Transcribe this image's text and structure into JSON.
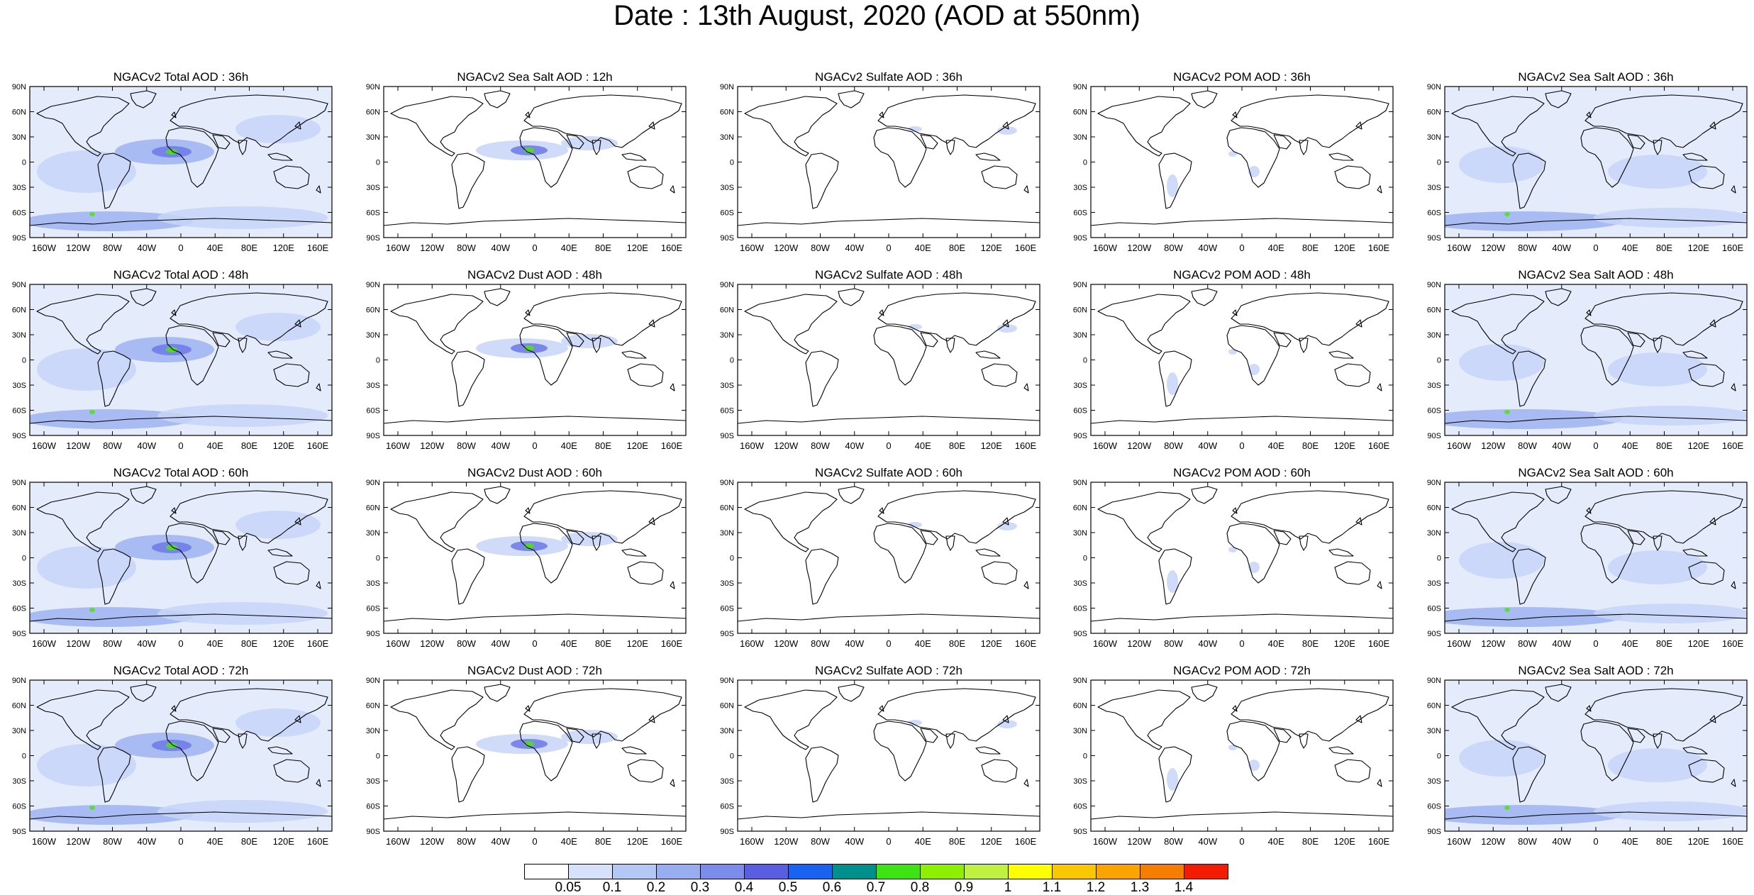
{
  "title": "Date : 13th August, 2020 (AOD at 550nm)",
  "lat_labels": [
    "90N",
    "60N",
    "30N",
    "0",
    "30S",
    "60S",
    "90S"
  ],
  "lon_labels": [
    "160W",
    "120W",
    "80W",
    "40W",
    "0",
    "40E",
    "80E",
    "120E",
    "160E"
  ],
  "panels": [
    {
      "title": "NGACv2 Total AOD : 36h"
    },
    {
      "title": "NGACv2 Sea Salt  AOD : 12h"
    },
    {
      "title": "NGACv2 Sulfate AOD : 36h"
    },
    {
      "title": "NGACv2 POM AOD : 36h"
    },
    {
      "title": "NGACv2 Sea Salt AOD : 36h"
    },
    {
      "title": "NGACv2 Total AOD : 48h"
    },
    {
      "title": "NGACv2 Dust AOD : 48h"
    },
    {
      "title": "NGACv2 Sulfate AOD : 48h"
    },
    {
      "title": "NGACv2 POM AOD : 48h"
    },
    {
      "title": "NGACv2 Sea Salt AOD : 48h"
    },
    {
      "title": "NGACv2 Total AOD : 60h"
    },
    {
      "title": "NGACv2 Dust AOD : 60h"
    },
    {
      "title": "NGACv2 Sulfate AOD : 60h"
    },
    {
      "title": "NGACv2 POM AOD : 60h"
    },
    {
      "title": "NGACv2 Sea Salt AOD : 60h"
    },
    {
      "title": "NGACv2 Total AOD : 72h"
    },
    {
      "title": "NGACv2 Dust AOD : 72h"
    },
    {
      "title": "NGACv2 Sulfate AOD : 72h"
    },
    {
      "title": "NGACv2 POM AOD : 72h"
    },
    {
      "title": "NGACv2 Sea Salt  AOD : 72h"
    }
  ],
  "colorbar": {
    "labels": [
      "0.05",
      "0.1",
      "0.2",
      "0.3",
      "0.4",
      "0.5",
      "0.6",
      "0.7",
      "0.8",
      "0.9",
      "1",
      "1.1",
      "1.2",
      "1.3",
      "1.4"
    ],
    "colors": [
      "#ffffff",
      "#d6e2fb",
      "#b4c8f5",
      "#98aef0",
      "#7c8ceb",
      "#5a5ee0",
      "#1864f0",
      "#00908c",
      "#3ee314",
      "#8ef000",
      "#c0f040",
      "#ffff00",
      "#f9c800",
      "#f9a400",
      "#f57e00",
      "#f41c00"
    ]
  },
  "palette": {
    "ocean_light": "#e4ebfb",
    "aod_low": "#c7d5f8",
    "aod_mid": "#9fb3f1",
    "aod_high": "#6d79e6",
    "aod_peak": "#4ee316",
    "coast": "#000000"
  }
}
